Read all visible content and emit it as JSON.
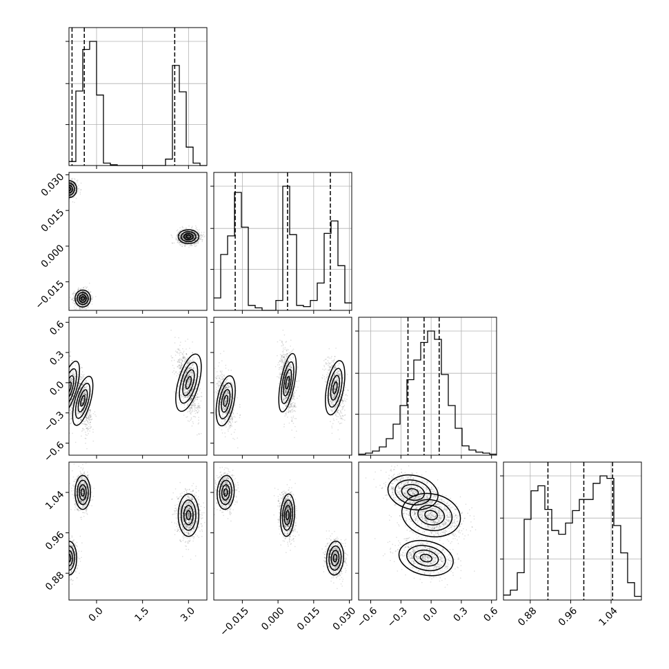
{
  "chart_data": {
    "type": "corner",
    "parameters": [
      {
        "range": [
          -0.9,
          3.6
        ],
        "ticks": [
          0.0,
          1.5,
          3.0
        ],
        "tick_labels": [
          "0.0",
          "1.5",
          "3.0"
        ],
        "quantiles": [
          -0.8,
          -0.4,
          2.55
        ]
      },
      {
        "range": [
          -0.027,
          0.031
        ],
        "ticks": [
          -0.015,
          0.0,
          0.015,
          0.03
        ],
        "tick_labels": [
          "−0.015",
          "0.000",
          "0.015",
          "0.030"
        ],
        "quantiles": [
          -0.018,
          0.004,
          0.022
        ]
      },
      {
        "range": [
          -0.72,
          0.65
        ],
        "ticks": [
          -0.6,
          -0.3,
          0.0,
          0.3,
          0.6
        ],
        "tick_labels": [
          "−0.6",
          "−0.3",
          "0.0",
          "0.3",
          "0.6"
        ],
        "quantiles": [
          -0.23,
          -0.07,
          0.08
        ]
      },
      {
        "range": [
          0.827,
          1.1
        ],
        "ticks": [
          0.88,
          0.96,
          1.04
        ],
        "tick_labels": [
          "0.88",
          "0.96",
          "1.04"
        ],
        "quantiles": [
          0.915,
          0.986,
          1.043
        ]
      }
    ],
    "histograms": [
      {
        "bins_x": [
          -0.9,
          -0.675,
          -0.45,
          -0.225,
          0.0,
          0.225,
          0.45,
          0.675,
          0.9,
          1.125,
          1.35,
          1.575,
          1.8,
          2.025,
          2.25,
          2.475,
          2.7,
          2.925,
          3.15,
          3.375,
          3.6
        ],
        "counts": [
          0.05,
          0.93,
          1.45,
          1.55,
          0.88,
          0.03,
          0.01,
          0,
          0,
          0,
          0,
          0,
          0,
          0,
          0.08,
          1.25,
          0.92,
          0.23,
          0.03,
          0
        ],
        "ymax": 1.55
      },
      {
        "bins_x": [
          -0.027,
          -0.0241,
          -0.0212,
          -0.0183,
          -0.0154,
          -0.0125,
          -0.0096,
          -0.0067,
          -0.0038,
          -0.0009,
          0.002,
          0.0049,
          0.0078,
          0.0107,
          0.0136,
          0.0165,
          0.0194,
          0.0223,
          0.0252,
          0.0281,
          0.031
        ],
        "counts": [
          0.1,
          0.45,
          0.6,
          0.95,
          0.67,
          0.04,
          0.02,
          0,
          0,
          0.08,
          1.0,
          0.61,
          0.04,
          0.03,
          0.08,
          0.22,
          0.62,
          0.72,
          0.36,
          0.06
        ],
        "ymax": 1.0
      },
      {
        "bins_x": [
          -0.72,
          -0.6515,
          -0.583,
          -0.5145,
          -0.446,
          -0.3775,
          -0.309,
          -0.2405,
          -0.172,
          -0.1035,
          -0.035,
          0.0335,
          0.102,
          0.1705,
          0.239,
          0.3075,
          0.376,
          0.4445,
          0.513,
          0.5815,
          0.65
        ],
        "counts": [
          0.01,
          0.02,
          0.04,
          0.08,
          0.16,
          0.3,
          0.48,
          0.73,
          0.92,
          1.09,
          1.2,
          1.12,
          0.78,
          0.48,
          0.26,
          0.09,
          0.05,
          0.03,
          0.02,
          0.01
        ],
        "ymax": 1.2
      },
      {
        "bins_x": [
          0.827,
          0.84065,
          0.8543,
          0.86795,
          0.8816,
          0.89525,
          0.9089,
          0.92255,
          0.9362,
          0.94985,
          0.9635,
          0.97715,
          0.9908,
          1.00445,
          1.0181,
          1.03175,
          1.0454,
          1.05905,
          1.0727,
          1.08635,
          1.1
        ],
        "counts": [
          0.04,
          0.08,
          0.22,
          0.65,
          0.88,
          0.92,
          0.73,
          0.56,
          0.53,
          0.62,
          0.72,
          0.81,
          0.81,
          0.94,
          1.0,
          0.98,
          0.6,
          0.38,
          0.14,
          0.03
        ],
        "ymax": 1.0
      }
    ],
    "modes": [
      {
        "mean": [
          -0.9,
          0.024,
          -0.05,
          0.91
        ],
        "sd": [
          0.12,
          0.0017,
          0.13,
          0.016
        ],
        "w": 0.3
      },
      {
        "mean": [
          -0.45,
          -0.022,
          -0.18,
          1.04
        ],
        "sd": [
          0.12,
          0.0017,
          0.12,
          0.016
        ],
        "w": 0.3
      },
      {
        "mean": [
          3.0,
          0.004,
          0.0,
          0.995
        ],
        "sd": [
          0.16,
          0.0014,
          0.14,
          0.02
        ],
        "w": 0.4
      }
    ]
  }
}
